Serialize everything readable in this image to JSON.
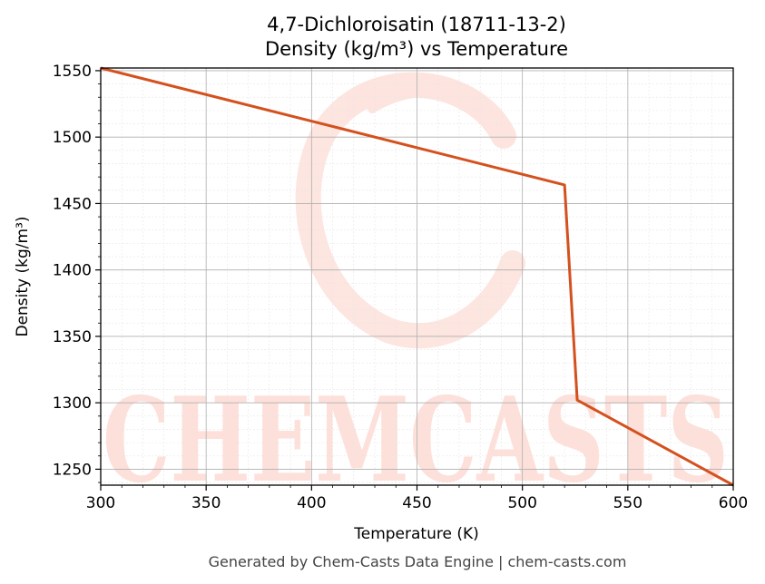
{
  "chart_data": {
    "type": "line",
    "title": "4,7-Dichloroisatin (18711-13-2)",
    "subtitle": "Density (kg/m³) vs Temperature",
    "xlabel": "Temperature (K)",
    "ylabel": "Density (kg/m³)",
    "xlim": [
      300,
      600
    ],
    "ylim": [
      1238,
      1552
    ],
    "xticks": [
      300,
      350,
      400,
      450,
      500,
      550,
      600
    ],
    "yticks": [
      1250,
      1300,
      1350,
      1400,
      1450,
      1500,
      1550
    ],
    "grid": true,
    "series": [
      {
        "color": "#d4511e",
        "x": [
          300,
          520,
          526,
          600
        ],
        "y": [
          1552,
          1464,
          1302,
          1238
        ]
      }
    ]
  },
  "watermark": {
    "text": "CHEMCASTS",
    "color": "#fde0da"
  },
  "footer": "Generated by Chem-Casts Data Engine | chem-casts.com"
}
